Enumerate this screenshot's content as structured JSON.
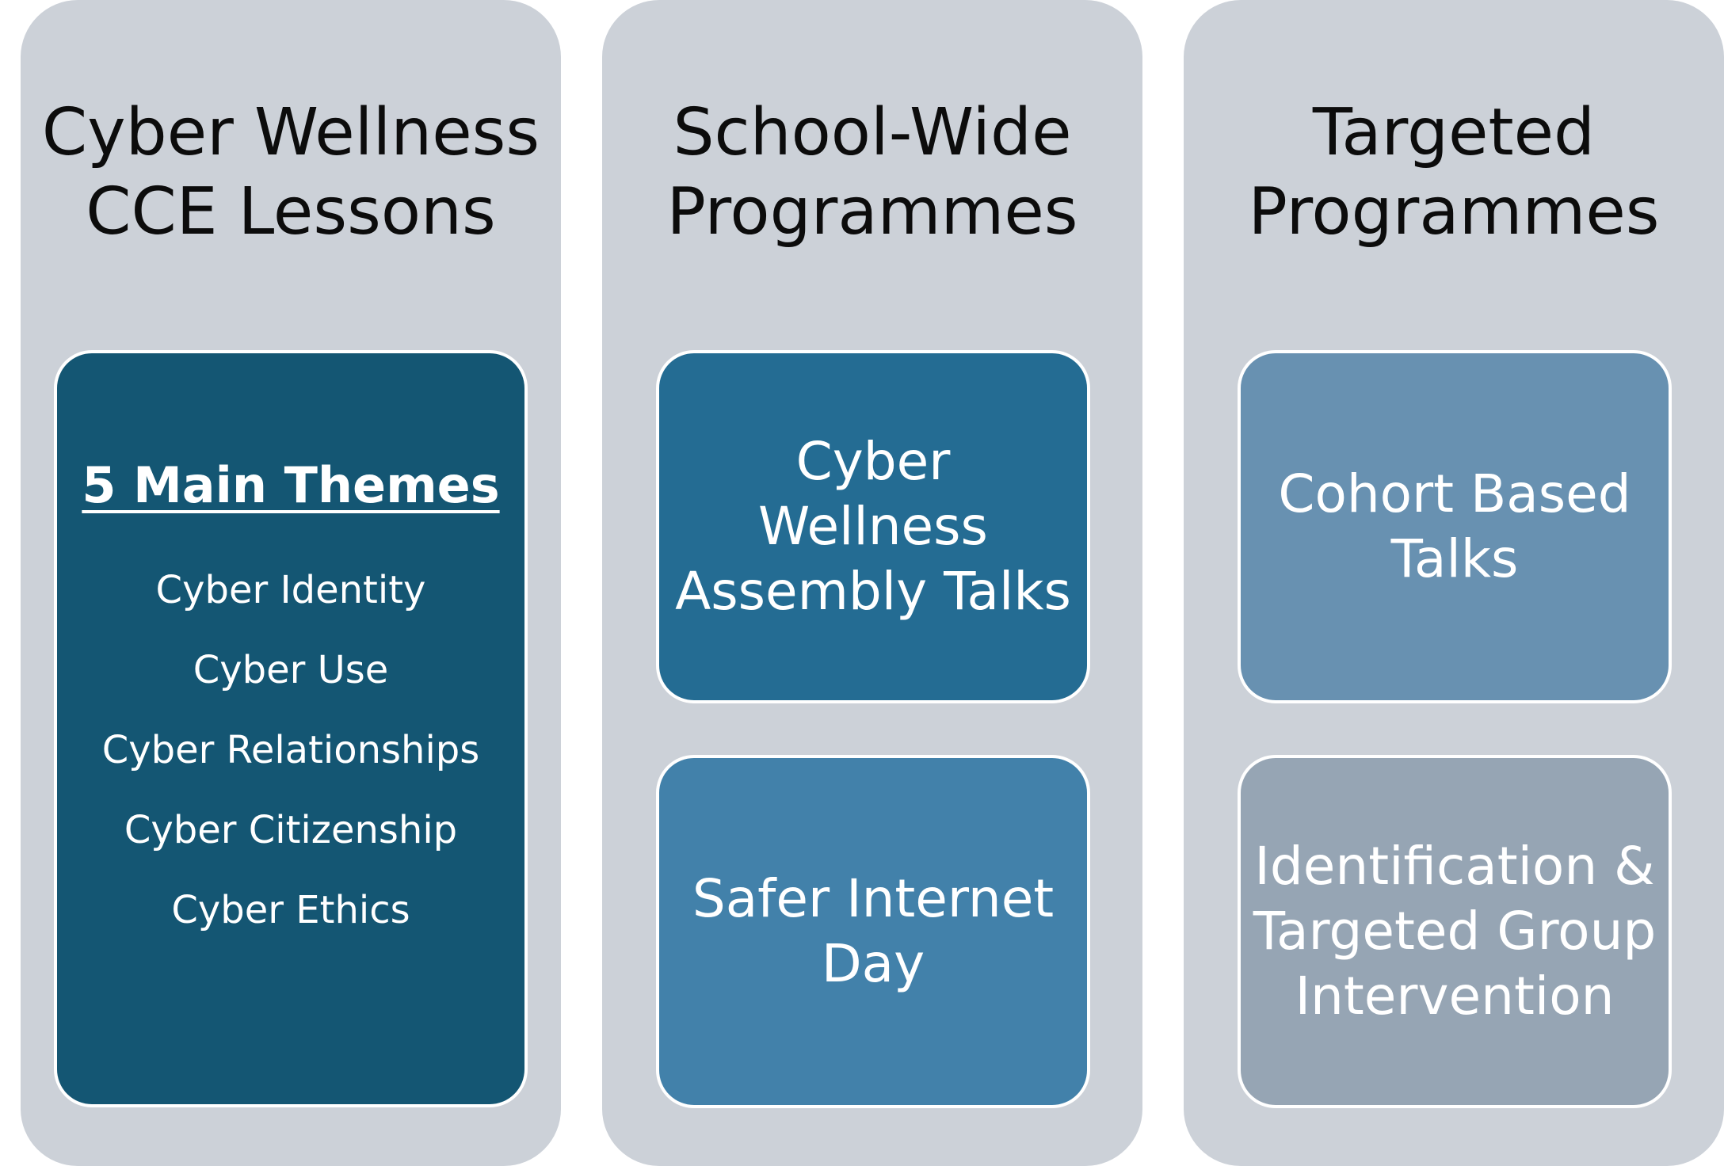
{
  "columns": [
    {
      "title_lines": [
        "Cyber Wellness",
        "CCE Lessons"
      ],
      "card": {
        "heading": "5 Main Themes",
        "items": [
          "Cyber Identity",
          "Cyber Use",
          "Cyber Relationships",
          "Cyber Citizenship",
          "Cyber Ethics"
        ],
        "color": "#145673"
      }
    },
    {
      "title_lines": [
        "School-Wide",
        "Programmes"
      ],
      "cards": [
        {
          "lines": [
            "Cyber",
            "Wellness",
            "Assembly Talks"
          ],
          "color": "#246c93"
        },
        {
          "lines": [
            "Safer Internet",
            "Day"
          ],
          "color": "#4281aa"
        }
      ]
    },
    {
      "title_lines": [
        "Targeted",
        "Programmes"
      ],
      "cards": [
        {
          "lines": [
            "Cohort Based",
            "Talks"
          ],
          "color": "#6891b1"
        },
        {
          "lines": [
            "Identification &",
            "Targeted Group",
            "Intervention"
          ],
          "color": "#96a5b4"
        }
      ]
    }
  ],
  "colors": {
    "column_background": "#ccd1d8",
    "title_text": "#0c0c0c",
    "card_text": "#ffffff",
    "card_border": "#ffffff"
  }
}
